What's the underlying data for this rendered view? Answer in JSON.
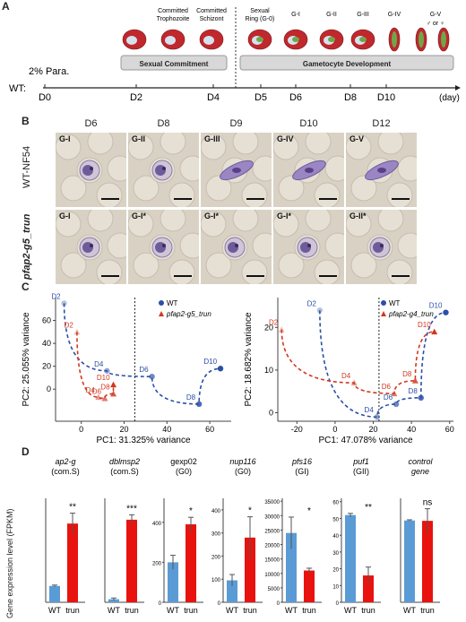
{
  "panelA": {
    "letter": "A",
    "para_label": "2% Para.",
    "wt_label": "WT:",
    "days": [
      "D0",
      "D2",
      "D4",
      "D5",
      "D6",
      "D8",
      "D10"
    ],
    "day_unit": "(day)",
    "stage_labels": [
      "Committed Trophozoite",
      "Committed Schizont",
      "Sexual Ring (G-0)",
      "G-I",
      "G-II",
      "G-III",
      "G-IV",
      "G-V"
    ],
    "sex_symbols": "♂ or ♀",
    "bar_sexual": "Sexual Commitment",
    "bar_gametocyte": "Gametocyte Development"
  },
  "panelB": {
    "letter": "B",
    "days": [
      "D6",
      "D8",
      "D9",
      "D10",
      "D12"
    ],
    "row1_label": "WT-NF54",
    "row2_label": "pfap2-g5_trun",
    "row1_stages": [
      "G-I",
      "G-II",
      "G-III",
      "G-IV",
      "G-V"
    ],
    "row2_stages": [
      "G-I",
      "G-I*",
      "G-I*",
      "G-I*",
      "G-II*"
    ]
  },
  "panelC": {
    "letter": "C",
    "left": {
      "xlabel": "PC1: 31.325% variance",
      "ylabel": "PC2: 25.055% variance",
      "legend": [
        "WT",
        "pfap2-g5_trun"
      ]
    },
    "right": {
      "xlabel": "PC1: 47.078% variance",
      "ylabel": "PC2: 18.682% variance",
      "legend": [
        "WT",
        "pfap2-g4_trun"
      ]
    }
  },
  "panelD": {
    "letter": "D",
    "ylabel": "Gene expression level (FPKM)",
    "xcats": [
      "WT",
      "trun"
    ]
  },
  "chart_data": [
    {
      "type": "scatter",
      "xlabel": "PC1: 31.325% variance",
      "ylabel": "PC2: 25.055% variance",
      "xlim": [
        -12,
        70
      ],
      "ylim": [
        -28,
        80
      ],
      "xticks": [
        0,
        20,
        40,
        60
      ],
      "yticks": [
        0,
        20,
        40,
        60
      ],
      "series": [
        {
          "name": "WT",
          "color": "#2a4fa8",
          "points": [
            {
              "label": "D2",
              "x": -8,
              "y": 75
            },
            {
              "label": "D4",
              "x": 12,
              "y": 16
            },
            {
              "label": "D6",
              "x": 33,
              "y": 11
            },
            {
              "label": "D8",
              "x": 55,
              "y": -13
            },
            {
              "label": "D10",
              "x": 65,
              "y": 18
            }
          ]
        },
        {
          "name": "pfap2-g5_trun",
          "color": "#d0391f",
          "points": [
            {
              "label": "D2",
              "x": -2,
              "y": 50
            },
            {
              "label": "D4",
              "x": 8,
              "y": -7
            },
            {
              "label": "D6",
              "x": 11,
              "y": -8
            },
            {
              "label": "D8",
              "x": 15,
              "y": -4
            },
            {
              "label": "D10",
              "x": 15,
              "y": 4
            }
          ]
        }
      ],
      "vline": 25
    },
    {
      "type": "scatter",
      "xlabel": "PC1: 47.078% variance",
      "ylabel": "PC2: 18.682% variance",
      "xlim": [
        -30,
        62
      ],
      "ylim": [
        -2,
        27
      ],
      "xticks": [
        -20,
        0,
        20,
        40,
        60
      ],
      "yticks": [
        0,
        10,
        20
      ],
      "series": [
        {
          "name": "WT",
          "color": "#2a4fa8",
          "points": [
            {
              "label": "D2",
              "x": -8,
              "y": 24
            },
            {
              "label": "D4",
              "x": 22,
              "y": -1
            },
            {
              "label": "D6",
              "x": 32,
              "y": 2
            },
            {
              "label": "D8",
              "x": 45,
              "y": 3.5
            },
            {
              "label": "D10",
              "x": 58,
              "y": 23.5
            }
          ]
        },
        {
          "name": "pfap2-g4_trun",
          "color": "#d0391f",
          "points": [
            {
              "label": "D2",
              "x": -28,
              "y": 19.5
            },
            {
              "label": "D4",
              "x": 10,
              "y": 7
            },
            {
              "label": "D6",
              "x": 31,
              "y": 4.5
            },
            {
              "label": "D8",
              "x": 42,
              "y": 7.5
            },
            {
              "label": "D10",
              "x": 52,
              "y": 19
            }
          ]
        }
      ],
      "vline": 23
    },
    {
      "type": "bar",
      "gene": "ap2-g",
      "stage": "(com.S)",
      "italic": true,
      "categories": [
        "WT",
        "trun"
      ],
      "values": [
        11,
        53
      ],
      "errors": [
        0.6,
        7
      ],
      "ylim": [
        0,
        70
      ],
      "sig": "**"
    },
    {
      "type": "bar",
      "gene": "dblmsp2",
      "stage": "(com.S)",
      "italic": true,
      "categories": [
        "WT",
        "trun"
      ],
      "values": [
        5,
        135
      ],
      "errors": [
        2,
        8
      ],
      "ylim": [
        0,
        170
      ],
      "sig": "***"
    },
    {
      "type": "bar",
      "gene": "gexp02",
      "stage": "(G0)",
      "italic": false,
      "categories": [
        "WT",
        "trun"
      ],
      "values": [
        200,
        390
      ],
      "errors": [
        35,
        35
      ],
      "ylim": [
        0,
        520
      ],
      "yticks": [
        0,
        200,
        400
      ],
      "sig": "*"
    },
    {
      "type": "bar",
      "gene": "nup116",
      "stage": "(G0)",
      "italic": true,
      "categories": [
        "WT",
        "trun"
      ],
      "values": [
        95,
        280
      ],
      "errors": [
        25,
        90
      ],
      "ylim": [
        0,
        450
      ],
      "yticks": [
        0,
        100,
        200,
        300,
        400
      ],
      "sig": "*"
    },
    {
      "type": "bar",
      "gene": "pfs16",
      "stage": "(GI)",
      "italic": true,
      "categories": [
        "WT",
        "trun"
      ],
      "values": [
        24000,
        11000
      ],
      "errors": [
        5500,
        800
      ],
      "ylim": [
        0,
        36000
      ],
      "yticks": [
        0,
        5000,
        10000,
        15000,
        20000,
        25000,
        30000,
        35000
      ],
      "sig": "*"
    },
    {
      "type": "bar",
      "gene": "puf1",
      "stage": "(GII)",
      "italic": true,
      "categories": [
        "WT",
        "trun"
      ],
      "values": [
        52,
        16
      ],
      "errors": [
        1,
        5
      ],
      "ylim": [
        0,
        62
      ],
      "yticks": [
        0,
        10,
        20,
        30,
        40,
        50,
        60
      ],
      "sig": "**"
    },
    {
      "type": "bar",
      "gene": "control",
      "stage": "gene",
      "italic": true,
      "categories": [
        "WT",
        "trun"
      ],
      "values": [
        236,
        235
      ],
      "errors": [
        2,
        35
      ],
      "ylim": [
        0,
        300
      ],
      "sig": "ns"
    }
  ]
}
